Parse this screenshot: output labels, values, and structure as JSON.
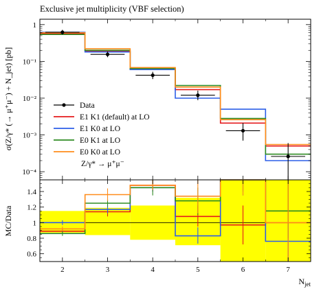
{
  "chart_data": {
    "type": "line",
    "title": "Exclusive jet multiplicity (VBF selection)",
    "xlabel": "N_jet",
    "xlabel_main": "N",
    "xlabel_sub": "jet",
    "ylabel_main": "σ(Z/γ* (→ μ⁺μ⁻) + N_jet) [pb]",
    "ylabel_ratio": "MC/Data",
    "x_tick_labels": [
      "2",
      "3",
      "4",
      "5",
      "6",
      "7"
    ],
    "y_tick_labels_main": [
      "1",
      "10⁻¹",
      "10⁻²",
      "10⁻³",
      "10⁻⁴"
    ],
    "y_tick_labels_ratio": [
      "1.4",
      "1.2",
      "1",
      "0.8",
      "0.6"
    ],
    "xlim": [
      1.5,
      7.5
    ],
    "ylim_main": [
      6e-05,
      1.4
    ],
    "ylim_ratio": [
      0.5,
      1.55
    ],
    "yscale_main": "log",
    "bin_edges": [
      1.5,
      2.5,
      3.5,
      4.5,
      5.5,
      6.5,
      7.5
    ],
    "legend": {
      "placement": "lower-left",
      "process_label": "Z/γ* → μ⁺μ⁻",
      "entries": [
        {
          "key": "data",
          "label": "Data",
          "color": "#000000"
        },
        {
          "key": "e1k1",
          "label": "E1 K1 (default) at LO",
          "color": "#e41a1c"
        },
        {
          "key": "e1k0",
          "label": "E1 K0 at LO",
          "color": "#2c5ee8"
        },
        {
          "key": "e0k1",
          "label": "E0 K1 at LO",
          "color": "#2e8b22"
        },
        {
          "key": "e0k0",
          "label": "E0 K0 at LO",
          "color": "#ff8c1a"
        }
      ]
    },
    "data": {
      "x": [
        2,
        3,
        4,
        5,
        6,
        7
      ],
      "y": [
        0.62,
        0.155,
        0.042,
        0.012,
        0.0013,
        0.00026
      ],
      "err_up": [
        0.72,
        0.185,
        0.052,
        0.016,
        0.0021,
        0.0006
      ],
      "err_down": [
        0.54,
        0.13,
        0.033,
        0.0088,
        0.0007,
        6e-05
      ]
    },
    "series": [
      {
        "key": "e1k1",
        "color": "#e41a1c",
        "values": [
          0.56,
          0.19,
          0.063,
          0.017,
          0.0021,
          0.0005
        ],
        "ratio": [
          0.89,
          1.14,
          1.48,
          1.08,
          0.97,
          1.0
        ]
      },
      {
        "key": "e1k0",
        "color": "#2c5ee8",
        "values": [
          0.62,
          0.18,
          0.06,
          0.01,
          0.005,
          0.0002
        ],
        "ratio": [
          1.0,
          1.17,
          1.45,
          0.83,
          1.55,
          0.76
        ]
      },
      {
        "key": "e0k1",
        "color": "#2e8b22",
        "values": [
          0.54,
          0.2,
          0.064,
          0.022,
          0.0028,
          0.0003
        ],
        "ratio": [
          0.86,
          1.25,
          1.45,
          1.28,
          1.55,
          1.15
        ]
      },
      {
        "key": "e0k0",
        "color": "#ff8c1a",
        "values": [
          0.6,
          0.22,
          0.068,
          0.02,
          0.0026,
          0.00055
        ],
        "ratio": [
          0.92,
          1.36,
          1.48,
          1.34,
          1.6,
          1.0
        ]
      }
    ],
    "data_band": {
      "up": [
        1.15,
        1.19,
        1.22,
        1.32,
        1.55,
        1.55
      ],
      "down": [
        0.87,
        0.84,
        0.78,
        0.71,
        0.45,
        0.45
      ]
    },
    "ratio_errors": {
      "e1k1": [
        [
          0.87,
          0.92
        ],
        [
          1.08,
          1.2
        ],
        [
          1.4,
          1.55
        ],
        [
          0.95,
          1.22
        ],
        [
          0.72,
          1.22
        ],
        [
          0.5,
          1.55
        ]
      ],
      "e1k0": [
        [
          0.97,
          1.03
        ],
        [
          1.12,
          1.22
        ],
        [
          1.4,
          1.5
        ],
        [
          0.73,
          0.94
        ],
        [
          1.35,
          1.55
        ],
        [
          0.5,
          1.0
        ]
      ],
      "e0k1": [
        [
          0.83,
          0.89
        ],
        [
          1.2,
          1.3
        ],
        [
          1.35,
          1.55
        ],
        [
          1.1,
          1.45
        ],
        [
          1.4,
          1.55
        ],
        [
          0.8,
          1.55
        ]
      ],
      "e0k0": [
        [
          0.89,
          0.95
        ],
        [
          1.28,
          1.44
        ],
        [
          1.42,
          1.55
        ],
        [
          1.12,
          1.55
        ],
        [
          1.35,
          1.55
        ],
        [
          0.5,
          1.55
        ]
      ]
    },
    "colors": {
      "band": "#ffff00",
      "frame": "#000000"
    }
  }
}
